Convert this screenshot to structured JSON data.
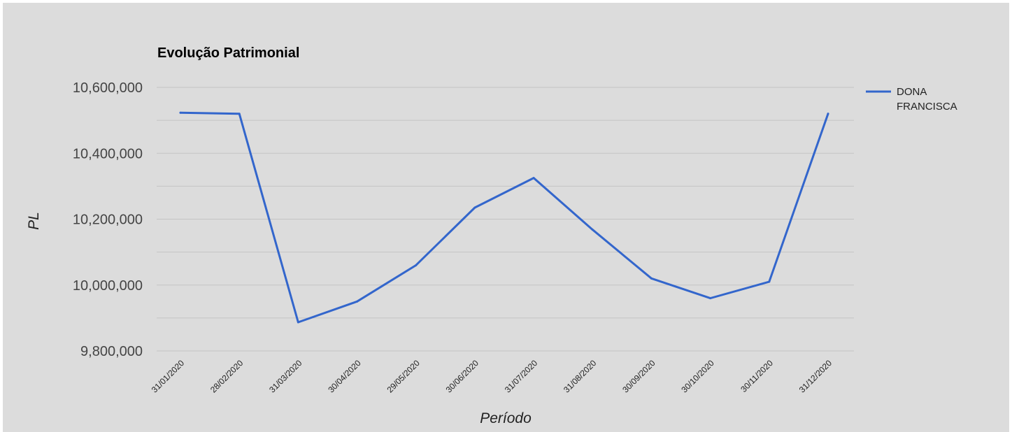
{
  "colors": {
    "background": "#dcdcdc",
    "grid": "#c4c4c4",
    "series": "#3366cc"
  },
  "chart_data": {
    "type": "line",
    "title": "Evolução Patrimonial",
    "xlabel": "Período",
    "ylabel": "PL",
    "x": [
      "31/01/2020",
      "28/02/2020",
      "31/03/2020",
      "30/04/2020",
      "29/05/2020",
      "30/06/2020",
      "31/07/2020",
      "31/08/2020",
      "30/09/2020",
      "30/10/2020",
      "30/11/2020",
      "31/12/2020"
    ],
    "series": [
      {
        "name": "DONA FRANCISCA",
        "legend_lines": [
          "DONA",
          "FRANCISCA"
        ],
        "values": [
          10523000,
          10520000,
          9887000,
          9950000,
          10060000,
          10235000,
          10325000,
          10168000,
          10020000,
          9960000,
          10010000,
          10520000
        ]
      }
    ],
    "ylim": [
      9800000,
      10600000
    ],
    "yticks": [
      9800000,
      10000000,
      10200000,
      10400000,
      10600000
    ],
    "ytick_labels": [
      "9,800,000",
      "10,000,000",
      "10,200,000",
      "10,400,000",
      "10,600,000"
    ],
    "grid": true,
    "legend": "right"
  }
}
